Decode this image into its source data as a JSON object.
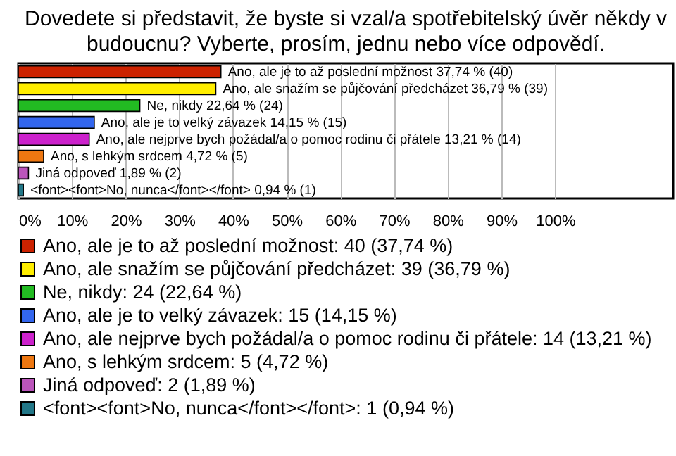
{
  "chart_data": {
    "type": "bar",
    "orientation": "horizontal",
    "title": "Dovedete si představit, že byste si vzal/a spotřebitelský úvěr někdy v budoucnu? Vyberte, prosím, jednu nebo více odpovědí.",
    "categories": [
      null,
      null,
      null,
      null,
      null,
      null,
      null,
      null
    ],
    "series": [
      {
        "name": "Ano, ale je to až poslední možnost: 40 (37,74 %)",
        "color": "#cc2200",
        "values": [
          37.74,
          null,
          null,
          null,
          null,
          null,
          null,
          null
        ],
        "value_labels": [
          "Ano, ale je to až poslední možnost 37,74 % (40)",
          null,
          null,
          null,
          null,
          null,
          null,
          null
        ]
      },
      {
        "name": "Ano, ale snažím se půjčování předcházet: 39 (36,79 %)",
        "color": "#ffee00",
        "values": [
          null,
          36.79,
          null,
          null,
          null,
          null,
          null,
          null
        ],
        "value_labels": [
          null,
          "Ano, ale snažím se půjčování předcházet 36,79 % (39)",
          null,
          null,
          null,
          null,
          null,
          null
        ]
      },
      {
        "name": "Ne, nikdy: 24 (22,64 %)",
        "color": "#22bb22",
        "values": [
          null,
          null,
          22.64,
          null,
          null,
          null,
          null,
          null
        ],
        "value_labels": [
          null,
          null,
          "Ne, nikdy 22,64 % (24)",
          null,
          null,
          null,
          null,
          null
        ]
      },
      {
        "name": "Ano, ale je to velký závazek: 15 (14,15 %)",
        "color": "#3366ee",
        "values": [
          null,
          null,
          null,
          14.15,
          null,
          null,
          null,
          null
        ],
        "value_labels": [
          null,
          null,
          null,
          "Ano, ale je to velký závazek 14,15 % (15)",
          null,
          null,
          null,
          null
        ]
      },
      {
        "name": "Ano, ale nejprve bych požádal/a o pomoc rodinu či přátele: 14 (13,21 %)",
        "color": "#cc22cc",
        "values": [
          null,
          null,
          null,
          null,
          13.21,
          null,
          null,
          null
        ],
        "value_labels": [
          null,
          null,
          null,
          null,
          "Ano, ale nejprve bych požádal/a o pomoc rodinu či přátele 13,21 % (14)",
          null,
          null,
          null
        ]
      },
      {
        "name": "Ano, s lehkým srdcem: 5 (4,72 %)",
        "color": "#ee7711",
        "values": [
          null,
          null,
          null,
          null,
          null,
          4.72,
          null,
          null
        ],
        "value_labels": [
          null,
          null,
          null,
          null,
          null,
          "Ano, s lehkým srdcem 4,72 % (5)",
          null,
          null
        ]
      },
      {
        "name": "Jiná odpoveď: 2 (1,89 %)",
        "color": "#bb55bb",
        "values": [
          null,
          null,
          null,
          null,
          null,
          null,
          1.89,
          null
        ],
        "value_labels": [
          null,
          null,
          null,
          null,
          null,
          null,
          "Jiná odpoveď 1,89 % (2)",
          null
        ]
      },
      {
        "name": "<font><font>No, nunca</font></font>: 1 (0,94 %)",
        "color": "#227788",
        "values": [
          null,
          null,
          null,
          null,
          null,
          null,
          null,
          0.94
        ],
        "value_labels": [
          null,
          null,
          null,
          null,
          null,
          null,
          null,
          "<font><font>No, nunca</font></font> 0,94 % (1)"
        ]
      }
    ],
    "xlim": [
      0,
      122
    ],
    "xticks": [
      {
        "value": 0,
        "label": "0%"
      },
      {
        "value": 10,
        "label": "10%"
      },
      {
        "value": 20,
        "label": "20%"
      },
      {
        "value": 30,
        "label": "30%"
      },
      {
        "value": 40,
        "label": "40%"
      },
      {
        "value": 50,
        "label": "50%"
      },
      {
        "value": 60,
        "label": "60%"
      },
      {
        "value": 70,
        "label": "70%"
      },
      {
        "value": 80,
        "label": "80%"
      },
      {
        "value": 90,
        "label": "90%"
      },
      {
        "value": 100,
        "label": "100%"
      }
    ],
    "grid": "x",
    "legend": "bottom",
    "tick_labels": "x"
  }
}
